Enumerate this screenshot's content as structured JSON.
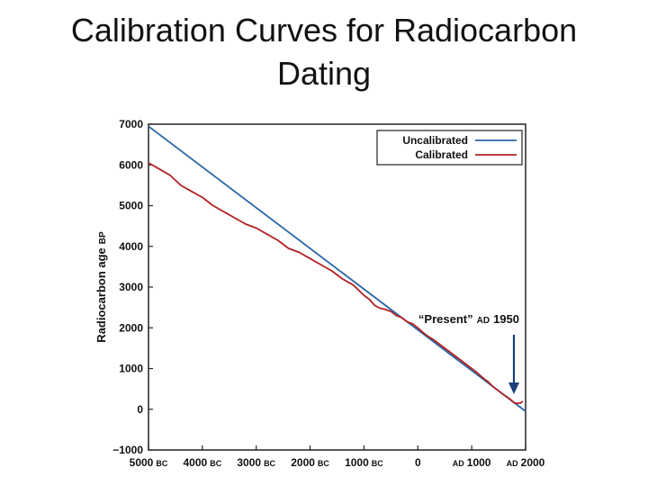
{
  "slide": {
    "title_line1": "Calibration Curves for Radiocarbon",
    "title_line2": "Dating"
  },
  "chart_data": {
    "type": "line",
    "title": "Calibration Curves for Radiocarbon Dating",
    "xlabel": "",
    "ylabel": "Radiocarbon age",
    "ylabel_unit": "BP",
    "xlim": [
      -5000,
      2000
    ],
    "ylim": [
      -1000,
      7000
    ],
    "yticks": [
      7000,
      6000,
      5000,
      4000,
      3000,
      2000,
      1000,
      0,
      -1000
    ],
    "ytick_labels": [
      "7000",
      "6000",
      "5000",
      "4000",
      "3000",
      "2000",
      "1000",
      "0",
      "−1000"
    ],
    "xticks": [
      {
        "value": -5000,
        "num": "5000",
        "era": "BC",
        "era_first": false
      },
      {
        "value": -4000,
        "num": "4000",
        "era": "BC",
        "era_first": false
      },
      {
        "value": -3000,
        "num": "3000",
        "era": "BC",
        "era_first": false
      },
      {
        "value": -2000,
        "num": "2000",
        "era": "BC",
        "era_first": false
      },
      {
        "value": -1000,
        "num": "1000",
        "era": "BC",
        "era_first": false
      },
      {
        "value": 0,
        "num": "0",
        "era": "",
        "era_first": false
      },
      {
        "value": 1000,
        "num": "1000",
        "era": "AD",
        "era_first": true
      },
      {
        "value": 2000,
        "num": "2000",
        "era": "AD",
        "era_first": true
      }
    ],
    "legend_position": "top-right",
    "grid": false,
    "series": [
      {
        "name": "Uncalibrated",
        "color": "#2a66a8",
        "x": [
          -5000,
          2000
        ],
        "y": [
          6950,
          -50
        ]
      },
      {
        "name": "Calibrated",
        "color": "#b22222",
        "x": [
          -5000,
          -4800,
          -4600,
          -4400,
          -4200,
          -4000,
          -3800,
          -3600,
          -3400,
          -3200,
          -3000,
          -2800,
          -2600,
          -2400,
          -2200,
          -2000,
          -1800,
          -1600,
          -1400,
          -1200,
          -1000,
          -900,
          -800,
          -700,
          -600,
          -500,
          -400,
          -300,
          -200,
          -100,
          0,
          100,
          200,
          300,
          400,
          500,
          600,
          700,
          800,
          900,
          1000,
          1100,
          1200,
          1300,
          1400,
          1500,
          1600,
          1700,
          1800,
          1900,
          1950
        ],
        "y": [
          6050,
          5900,
          5750,
          5500,
          5350,
          5200,
          5000,
          4850,
          4700,
          4550,
          4450,
          4300,
          4150,
          3950,
          3850,
          3700,
          3550,
          3400,
          3200,
          3050,
          2800,
          2700,
          2550,
          2480,
          2450,
          2400,
          2300,
          2250,
          2150,
          2100,
          2000,
          1880,
          1780,
          1700,
          1600,
          1500,
          1400,
          1300,
          1200,
          1100,
          1000,
          900,
          780,
          680,
          550,
          450,
          350,
          260,
          150,
          150,
          200
        ]
      }
    ],
    "annotations": [
      {
        "text_quoted": "“Present”",
        "era": "AD",
        "year": "1950",
        "x": 1950,
        "points_to_y": 400
      }
    ]
  }
}
